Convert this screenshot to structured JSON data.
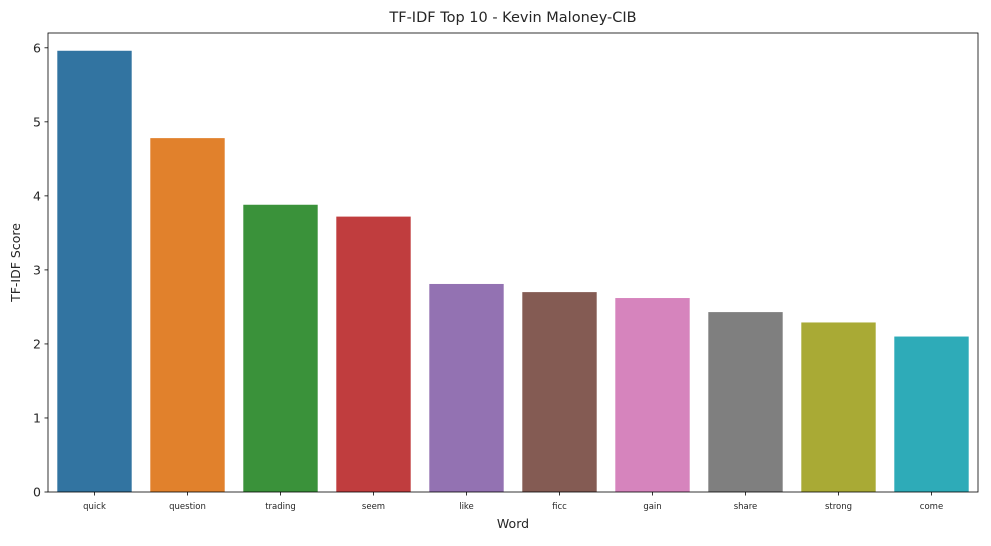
{
  "chart_data": {
    "type": "bar",
    "title": "TF-IDF Top 10 - Kevin Maloney-CIB",
    "xlabel": "Word",
    "ylabel": "TF-IDF Score",
    "ylim": [
      0,
      6.2
    ],
    "yticks": [
      "0",
      "1",
      "2",
      "3",
      "4",
      "5",
      "6"
    ],
    "categories": [
      "quick",
      "question",
      "trading",
      "seem",
      "like",
      "ficc",
      "gain",
      "share",
      "strong",
      "come"
    ],
    "values": [
      5.96,
      4.78,
      3.88,
      3.72,
      2.81,
      2.7,
      2.62,
      2.43,
      2.29,
      2.1
    ],
    "colors": [
      "#3274a1",
      "#e1812c",
      "#3a923a",
      "#c03d3e",
      "#9372b2",
      "#845b53",
      "#d684bd",
      "#7f7f7f",
      "#a9aa35",
      "#2eabb8"
    ],
    "grid": false,
    "legend": "none"
  }
}
